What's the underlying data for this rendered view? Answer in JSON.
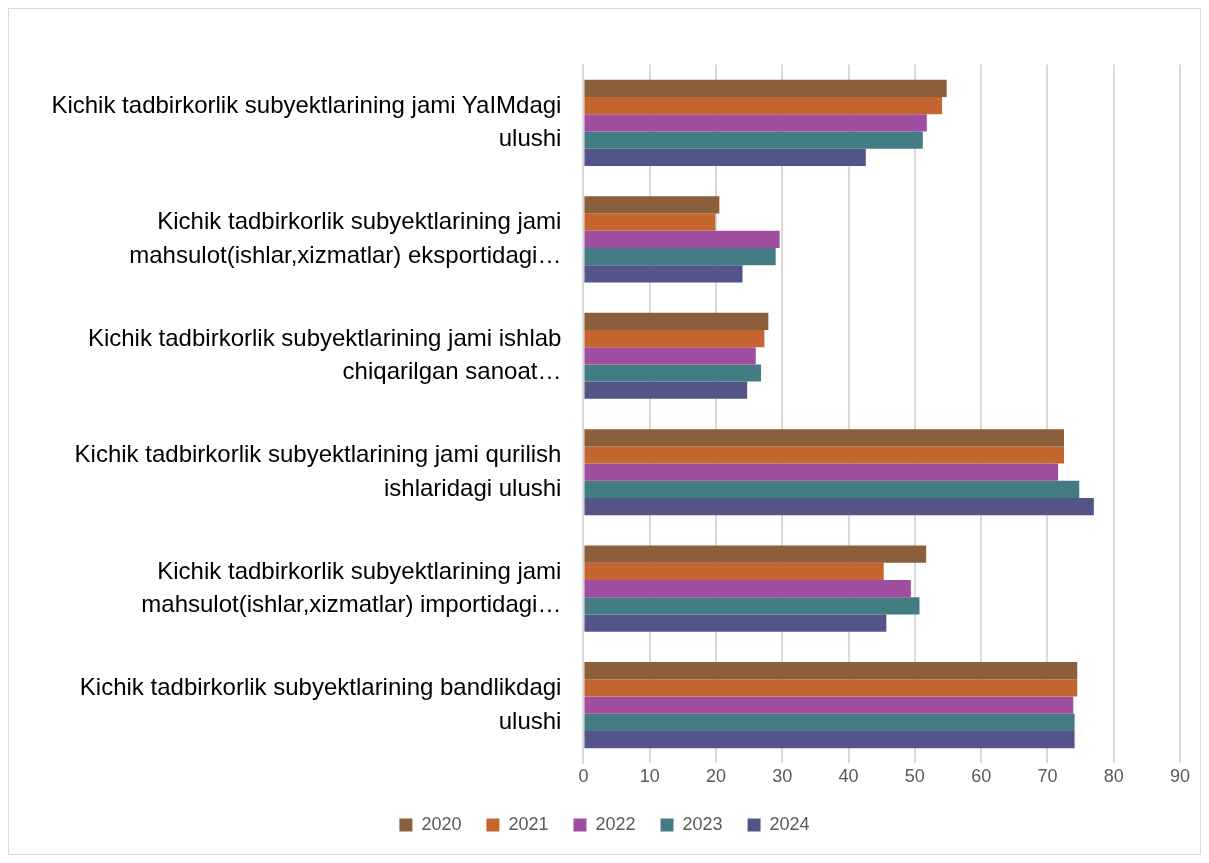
{
  "chart_data": {
    "type": "bar",
    "orientation": "horizontal",
    "categories": [
      "Kichik tadbirkorlik subyektlarining jami YaIMdagi ulushi",
      "Kichik tadbirkorlik subyektlarining jami mahsulot(ishlar,xizmatlar) eksportidagi…",
      "Kichik tadbirkorlik subyektlarining jami ishlab chiqarilgan sanoat…",
      "Kichik tadbirkorlik subyektlarining jami qurilish ishlaridagi ulushi",
      "Kichik tadbirkorlik subyektlarining jami mahsulot(ishlar,xizmatlar) importidagi…",
      "Kichik tadbirkorlik subyektlarining bandlikdagi ulushi"
    ],
    "series": [
      {
        "name": "2020",
        "color": "#8b5e3c",
        "values": [
          54.8,
          20.5,
          27.9,
          72.5,
          51.7,
          74.5
        ]
      },
      {
        "name": "2021",
        "color": "#c5652f",
        "values": [
          54.1,
          19.9,
          27.3,
          72.5,
          45.3,
          74.5
        ]
      },
      {
        "name": "2022",
        "color": "#a04ea0",
        "values": [
          51.8,
          29.6,
          26.0,
          71.6,
          49.4,
          73.9
        ]
      },
      {
        "name": "2023",
        "color": "#437d83",
        "values": [
          51.2,
          29.0,
          26.8,
          74.8,
          50.7,
          74.1
        ]
      },
      {
        "name": "2024",
        "color": "#535487",
        "values": [
          42.6,
          24.0,
          24.7,
          77.0,
          45.7,
          74.1
        ]
      }
    ],
    "xlim": [
      0,
      90
    ],
    "xticks": [
      0,
      10,
      20,
      30,
      40,
      50,
      60,
      70,
      80,
      90
    ],
    "grid": "x",
    "legend": "bottom"
  }
}
